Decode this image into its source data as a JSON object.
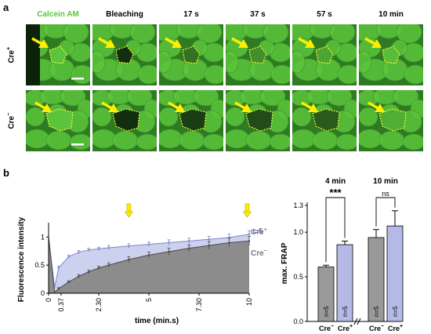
{
  "panel_a": {
    "letter": "a",
    "columns": [
      "Calcein AM",
      "Bleaching",
      "17 s",
      "37 s",
      "57 s",
      "10 min"
    ],
    "rows": [
      {
        "label": "Cre",
        "sup": "+",
        "bleach_level": [
          0.0,
          1.0,
          0.55,
          0.35,
          0.2,
          0.05
        ]
      },
      {
        "label": "Cre",
        "sup": "−",
        "bleach_level": [
          0.0,
          1.0,
          0.9,
          0.8,
          0.7,
          0.15
        ]
      }
    ],
    "colors": {
      "calcein": "#5cc43c",
      "dark": "#123310",
      "outline": "#ffff33",
      "arrow": "#ffee00"
    }
  },
  "panel_b": {
    "letter": "b",
    "chart_data": [
      {
        "type": "line",
        "ylabel": "Fluorescence intensity",
        "xlabel": "time (min.s)",
        "x_ticks": [
          "0",
          "0.37",
          "2.30",
          "5",
          "7.30",
          "10"
        ],
        "x_tick_values": [
          0,
          0.62,
          2.5,
          5,
          7.5,
          10
        ],
        "y_ticks": [
          "0",
          "0.5",
          "1"
        ],
        "xlim": [
          0,
          10
        ],
        "ylim": [
          0,
          1.2
        ],
        "n_label": "n=5",
        "series": [
          {
            "name": "Cre",
            "sup": "+",
            "color": "#7f85c8",
            "fill": "#c8ccee",
            "x": [
              0,
              0.3,
              0.5,
              1,
              1.5,
              2,
              2.5,
              3,
              4,
              5,
              6,
              7,
              8,
              9,
              10
            ],
            "y": [
              1,
              0.1,
              0.45,
              0.65,
              0.73,
              0.77,
              0.79,
              0.81,
              0.84,
              0.87,
              0.9,
              0.93,
              0.96,
              0.99,
              1.05
            ],
            "err": [
              0,
              0.03,
              0.03,
              0.03,
              0.03,
              0.03,
              0.03,
              0.04,
              0.04,
              0.04,
              0.05,
              0.05,
              0.05,
              0.06,
              0.06
            ]
          },
          {
            "name": "Cre",
            "sup": "−",
            "color": "#4a4a4a",
            "fill": "#8c8c8c",
            "x": [
              0,
              0.3,
              0.5,
              1,
              1.5,
              2,
              2.5,
              3,
              4,
              5,
              6,
              7,
              8,
              9,
              10
            ],
            "y": [
              1,
              0.02,
              0.08,
              0.2,
              0.3,
              0.38,
              0.45,
              0.5,
              0.6,
              0.68,
              0.74,
              0.8,
              0.85,
              0.9,
              0.93
            ],
            "err": [
              0,
              0.02,
              0.02,
              0.02,
              0.03,
              0.03,
              0.03,
              0.04,
              0.05,
              0.05,
              0.06,
              0.06,
              0.07,
              0.08,
              0.08
            ]
          }
        ],
        "arrow_at_x": [
          4,
          9.9
        ]
      },
      {
        "type": "bar",
        "ylabel": "max. FRAP",
        "y_ticks": [
          "0.0",
          "0.5",
          "1.0",
          "1.3"
        ],
        "y_tick_values": [
          0,
          0.5,
          1.0,
          1.3
        ],
        "ylim": [
          0,
          1.3
        ],
        "groups": [
          {
            "title": "4 min",
            "significance": "***",
            "bars": [
              {
                "label": "Cre",
                "sup": "−",
                "value": 0.61,
                "err": 0.02,
                "n": "n=5",
                "color": "#999999"
              },
              {
                "label": "Cre",
                "sup": "+",
                "value": 0.86,
                "err": 0.04,
                "n": "n=5",
                "color": "#b5b9e6"
              }
            ]
          },
          {
            "title": "10 min",
            "significance": "ns",
            "bars": [
              {
                "label": "Cre",
                "sup": "−",
                "value": 0.94,
                "err": 0.09,
                "n": "n=5",
                "color": "#999999"
              },
              {
                "label": "Cre",
                "sup": "+",
                "value": 1.07,
                "err": 0.17,
                "n": "n=5",
                "color": "#b5b9e6"
              }
            ]
          }
        ]
      }
    ]
  }
}
